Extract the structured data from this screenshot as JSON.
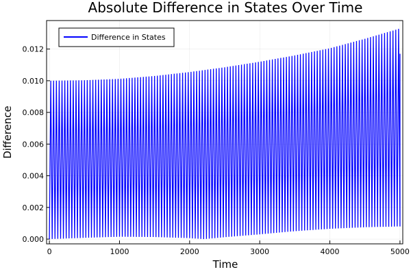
{
  "chart_data": {
    "type": "line",
    "title": "Absolute Difference in States Over Time",
    "xlabel": "Time",
    "ylabel": "Difference",
    "xlim": [
      -40,
      5040
    ],
    "ylim": [
      -0.0003,
      0.0138
    ],
    "xticks": [
      0,
      1000,
      2000,
      3000,
      4000,
      5000
    ],
    "xtick_labels": [
      "0",
      "1000",
      "2000",
      "3000",
      "4000",
      "5000"
    ],
    "yticks": [
      0.0,
      0.002,
      0.004,
      0.006,
      0.008,
      0.01,
      0.012
    ],
    "ytick_labels": [
      "0.000",
      "0.002",
      "0.004",
      "0.006",
      "0.008",
      "0.010",
      "0.012"
    ],
    "grid": true,
    "legend": {
      "position": "top-left",
      "entries": [
        "Difference in States"
      ]
    },
    "series": [
      {
        "name": "Difference in States",
        "color": "#0000ff",
        "oscillation_period": 40,
        "x_range": [
          0,
          5000
        ],
        "upper_envelope": {
          "x": [
            0,
            500,
            1000,
            1500,
            2000,
            2500,
            3000,
            3500,
            4000,
            4500,
            5000
          ],
          "y": [
            0.01,
            0.01003,
            0.01012,
            0.0103,
            0.01055,
            0.01085,
            0.0112,
            0.0116,
            0.01205,
            0.01265,
            0.0133
          ]
        },
        "lower_envelope": {
          "x": [
            0,
            500,
            1000,
            1500,
            2000,
            2200,
            2500,
            3000,
            3500,
            4000,
            4500,
            5000
          ],
          "y": [
            0.0,
            8e-05,
            0.00015,
            0.00013,
            6e-05,
            0.0,
            0.00012,
            0.0003,
            0.0005,
            0.00065,
            0.00075,
            0.0008
          ]
        },
        "final_value": 0.0117
      }
    ]
  }
}
